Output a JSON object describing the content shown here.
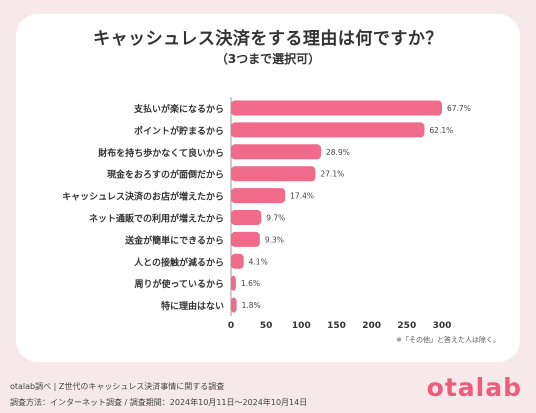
{
  "header": {
    "title": "キャッシュレス決済をする理由は何ですか？",
    "subtitle": "（3つまで選択可）"
  },
  "note": "※「その他」と答えた人は除く。",
  "footer": {
    "source": "otalab調べ | Z世代のキャッシュレス決済事情に関する調査",
    "method": "調査方法：インターネット調査 / 調査期間：2024年10月11日〜2024年10月14日"
  },
  "logo": "otalab",
  "colors": {
    "bar": "#f06a8c",
    "background": "#f7e9e9",
    "logo": "#ef5b7a"
  },
  "chart_data": {
    "type": "bar",
    "orientation": "horizontal",
    "categories": [
      "支払いが楽になるから",
      "ポイントが貯まるから",
      "財布を持ち歩かなくて良いから",
      "現金をおろすのが面倒だから",
      "キャッシュレス決済のお店が増えたから",
      "ネット通販での利用が増えたから",
      "送金が簡単にできるから",
      "人との接触が減るから",
      "周りが使っているから",
      "特に理由はない"
    ],
    "values": [
      300,
      275,
      128,
      120,
      77,
      43,
      41,
      18,
      7,
      8
    ],
    "labels": [
      "67.7%",
      "62.1%",
      "28.9%",
      "27.1%",
      "17.4%",
      "9.7%",
      "9.3%",
      "4.1%",
      "1.6%",
      "1.8%"
    ],
    "xlim": [
      0,
      300
    ],
    "xticks": [
      "0",
      "50",
      "100",
      "150",
      "200",
      "250",
      "300"
    ],
    "grid": false
  }
}
